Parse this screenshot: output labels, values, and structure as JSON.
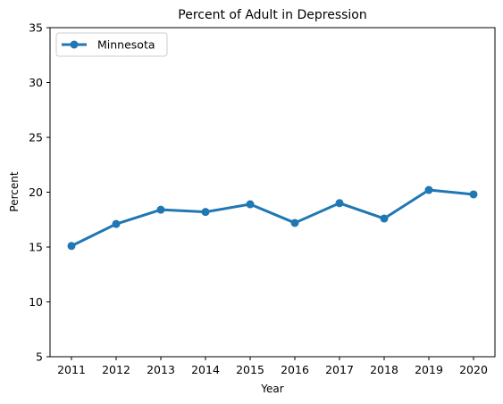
{
  "chart_data": {
    "type": "line",
    "title": "Percent of Adult in Depression",
    "xlabel": "Year",
    "ylabel": "Percent",
    "categories": [
      "2011",
      "2012",
      "2013",
      "2014",
      "2015",
      "2016",
      "2017",
      "2018",
      "2019",
      "2020"
    ],
    "series": [
      {
        "name": "Minnesota",
        "values": [
          15.1,
          17.1,
          18.4,
          18.2,
          18.9,
          17.2,
          19.0,
          17.6,
          20.2,
          19.8
        ],
        "color": "#1f77b4",
        "marker": "circle"
      }
    ],
    "ylim": [
      5,
      35
    ],
    "yticks": [
      5,
      10,
      15,
      20,
      25,
      30,
      35
    ],
    "grid": false,
    "legend_position": "top-left"
  }
}
